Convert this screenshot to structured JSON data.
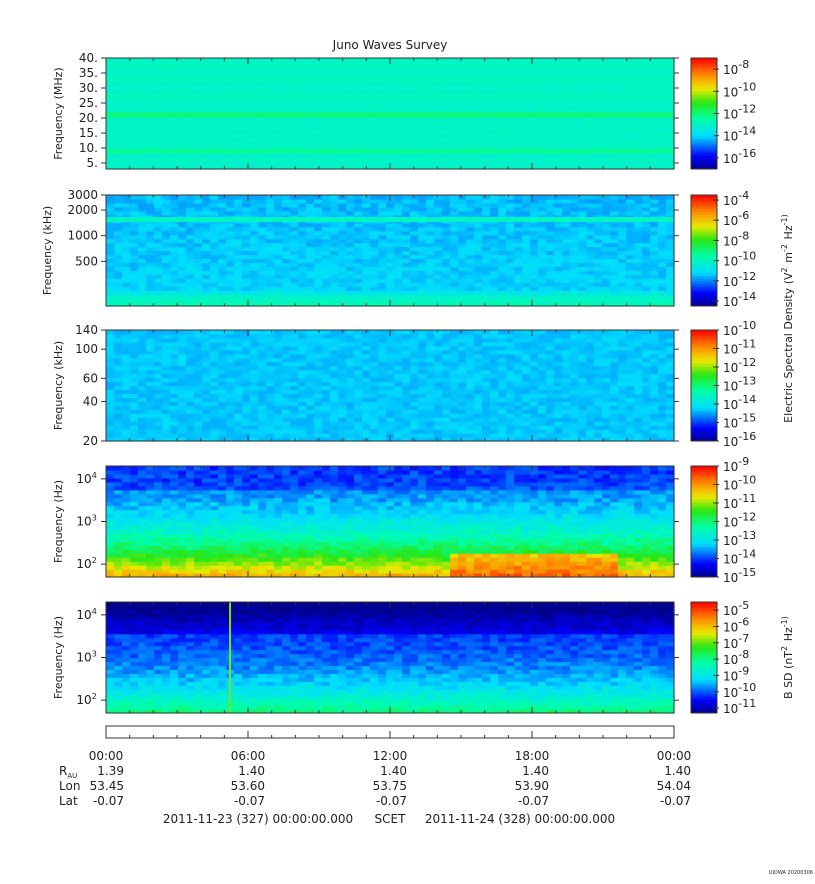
{
  "title": "Juno Waves Survey",
  "chart_data": [
    {
      "type": "heatmap",
      "panel": "MHz band",
      "ylabel": "Frequency (MHz)",
      "yscale": "linear",
      "ylim": [
        3,
        40
      ],
      "yticks": [
        5,
        10,
        15,
        20,
        25,
        30,
        35,
        40
      ],
      "ytick_labels": [
        "5.",
        "10.",
        "15.",
        "20.",
        "25.",
        "30.",
        "35.",
        "40."
      ],
      "colorbar_exponents": [
        "-8",
        "-10",
        "-12",
        "-14",
        "-16"
      ],
      "colorbar_range_log": [
        -17,
        -7
      ],
      "base_level": -13,
      "bands": [
        {
          "freq": 21,
          "level": -12
        },
        {
          "freq": 9,
          "level": -12.3
        },
        {
          "freq": 27,
          "level": -12.8
        },
        {
          "freq": 33,
          "level": -12.8
        },
        {
          "freq": 37.5,
          "level": -12.8
        }
      ]
    },
    {
      "type": "heatmap",
      "panel": "kHz high band",
      "ylabel": "Frequency (kHz)",
      "yscale": "log",
      "ylim": [
        150,
        3000
      ],
      "yticks": [
        500,
        1000,
        2000,
        3000
      ],
      "ytick_labels": [
        "500",
        "1000",
        "2000",
        "3000"
      ],
      "colorbar_exponents": [
        "-4",
        "-6",
        "-8",
        "-10",
        "-12",
        "-14"
      ],
      "colorbar_range_log": [
        -14.5,
        -3.5
      ],
      "base_level": -11.2,
      "bands": [
        {
          "freq": 1550,
          "level": -10.0
        },
        {
          "freq": 180,
          "level": -10.0
        }
      ]
    },
    {
      "type": "heatmap",
      "panel": "kHz low band",
      "ylabel": "Frequency (kHz)",
      "yscale": "log",
      "ylim": [
        20,
        140
      ],
      "yticks": [
        20,
        40,
        60,
        100,
        140
      ],
      "ytick_labels": [
        "20",
        "40",
        "60",
        "100",
        "140"
      ],
      "colorbar_exponents": [
        "-10",
        "-11",
        "-12",
        "-13",
        "-14",
        "-15",
        "-16"
      ],
      "colorbar_range_log": [
        -16,
        -10
      ],
      "base_level": -14.3,
      "bands": []
    },
    {
      "type": "heatmap",
      "panel": "E-field Hz band",
      "ylabel": "Frequency (Hz)",
      "yscale": "log",
      "ylim": [
        50,
        20000
      ],
      "yticks": [
        100,
        1000,
        10000
      ],
      "ytick_labels": [
        "10|2",
        "10|3",
        "10|4"
      ],
      "colorbar_exponents": [
        "-9",
        "-10",
        "-11",
        "-12",
        "-13",
        "-14",
        "-15"
      ],
      "colorbar_range_log": [
        -15,
        -9
      ],
      "enhancement": {
        "start_hour": 14.5,
        "end_hour": 21.5,
        "level": -9.6
      }
    },
    {
      "type": "heatmap",
      "panel": "B-field Hz band",
      "ylabel": "Frequency (Hz)",
      "yscale": "log",
      "ylim": [
        50,
        20000
      ],
      "yticks": [
        100,
        1000,
        10000
      ],
      "ytick_labels": [
        "10|2",
        "10|3",
        "10|4"
      ],
      "colorbar_exponents": [
        "-5",
        "-6",
        "-7",
        "-8",
        "-9",
        "-10",
        "-11"
      ],
      "colorbar_range_log": [
        -11.3,
        -4.5
      ],
      "spike_hour": 5.2
    }
  ],
  "colorbar_labels": {
    "electric": "Electric Spectral Density (V|2 m|-2 Hz|-1)",
    "magnetic": "B SD (nT|2 Hz|-1)"
  },
  "time_axis": {
    "ticks": [
      "00:00",
      "06:00",
      "12:00",
      "18:00",
      "00:00"
    ],
    "hours": [
      0,
      6,
      12,
      18,
      24
    ]
  },
  "ephemeris": {
    "rows": [
      {
        "label": "R",
        "sub": "AU",
        "values": [
          "1.39",
          "1.40",
          "1.40",
          "1.40",
          "1.40"
        ]
      },
      {
        "label": "Lon",
        "sub": "",
        "values": [
          "53.45",
          "53.60",
          "53.75",
          "53.90",
          "54.04"
        ]
      },
      {
        "label": "Lat",
        "sub": "",
        "values": [
          "-0.07",
          "-0.07",
          "-0.07",
          "-0.07",
          "-0.07"
        ]
      }
    ]
  },
  "footer": {
    "start": "2011-11-23 (327) 00:00:00.000",
    "scet": "SCET",
    "end": "2011-11-24 (328) 00:00:00.000"
  },
  "stamp": "UIOWA 20200306"
}
